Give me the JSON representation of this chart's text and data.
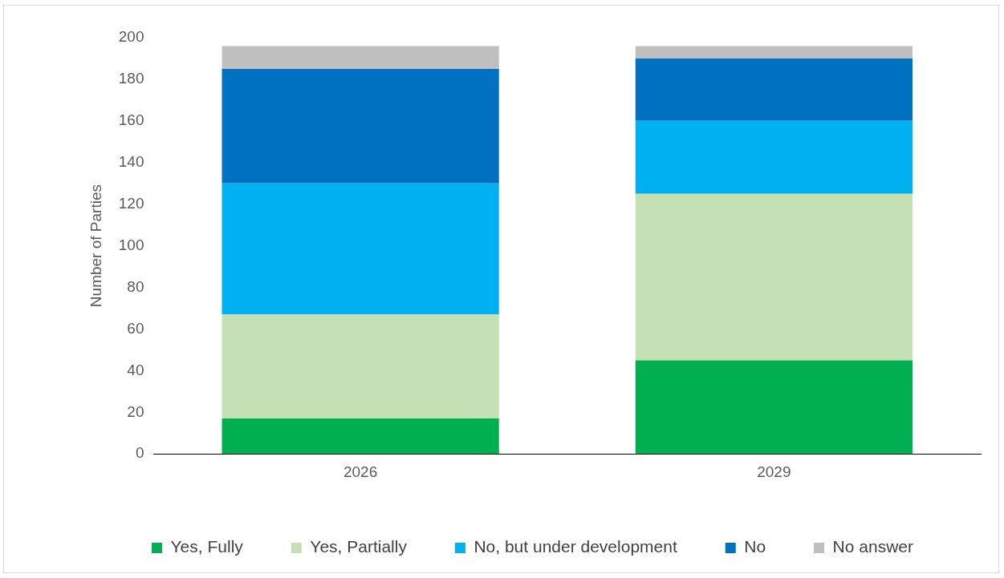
{
  "chart_data": {
    "type": "bar",
    "stacked": true,
    "ylabel": "Number of Parties",
    "categories": [
      "2026",
      "2029"
    ],
    "series": [
      {
        "name": "Yes, Fully",
        "color": "#00b050",
        "values": [
          17,
          45
        ]
      },
      {
        "name": "Yes, Partially",
        "color": "#c5e0b4",
        "values": [
          50,
          80
        ]
      },
      {
        "name": "No, but under development",
        "color": "#00b0f0",
        "values": [
          63,
          35
        ]
      },
      {
        "name": "No",
        "color": "#0070c0",
        "values": [
          55,
          30
        ]
      },
      {
        "name": "No answer",
        "color": "#bfbfbf",
        "values": [
          11,
          6
        ]
      }
    ],
    "ylim": [
      0,
      200
    ],
    "yticks": [
      0,
      20,
      40,
      60,
      80,
      100,
      120,
      140,
      160,
      180,
      200
    ],
    "grid": false,
    "legend": "bottom"
  }
}
